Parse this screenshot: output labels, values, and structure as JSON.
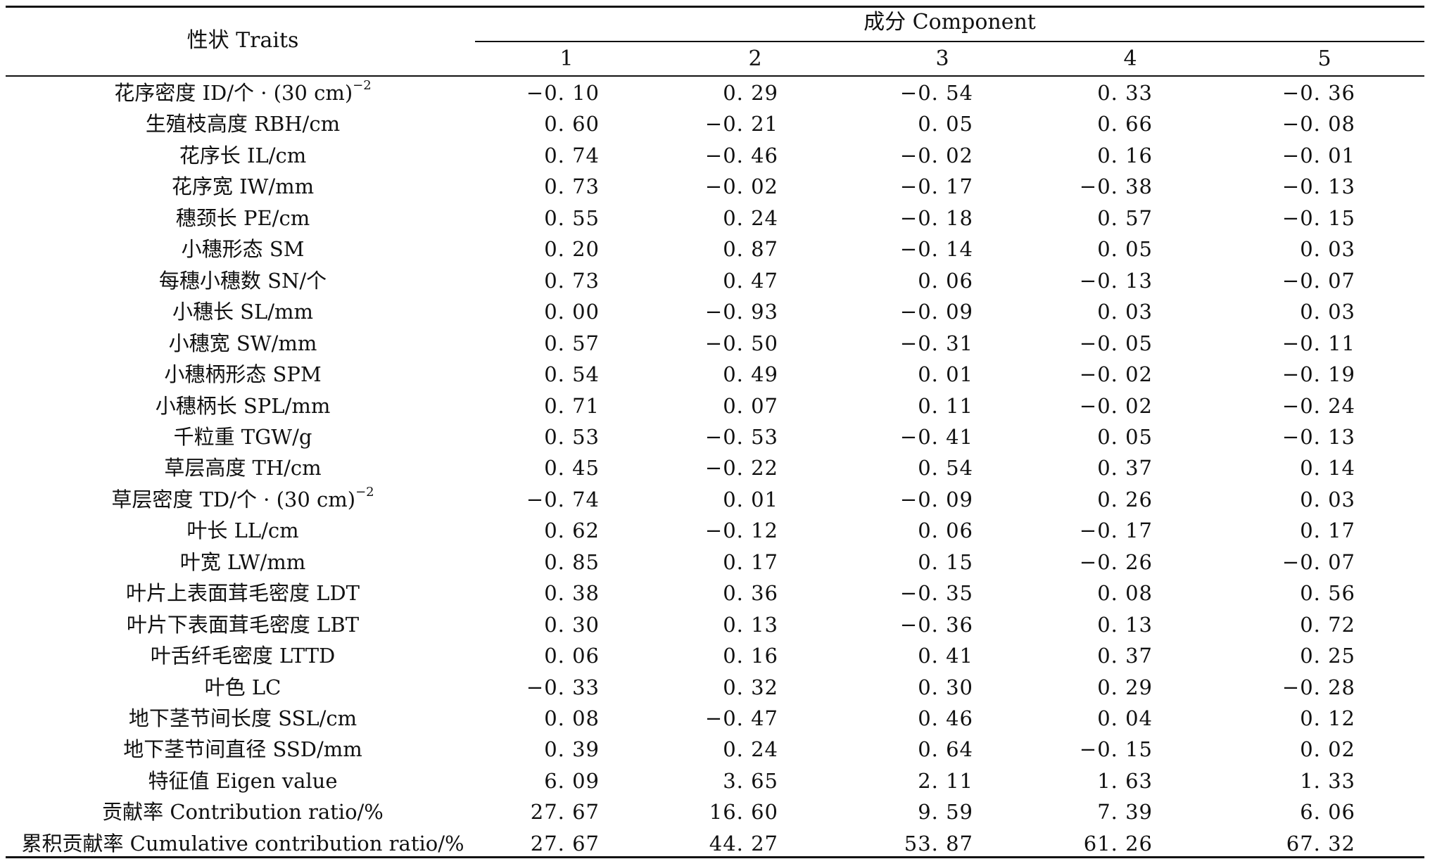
{
  "table": {
    "header": {
      "traits_label": "性状 Traits",
      "component_label": "成分 Component",
      "columns": [
        "1",
        "2",
        "3",
        "4",
        "5"
      ]
    },
    "rows": [
      {
        "trait": "花序密度 ID/个 · (30 cm)",
        "sup": "−2",
        "values": [
          "−0. 10",
          "0. 29",
          "−0. 54",
          "0. 33",
          "−0. 36"
        ]
      },
      {
        "trait": "生殖枝高度 RBH/cm",
        "sup": "",
        "values": [
          "0. 60",
          "−0. 21",
          "0. 05",
          "0. 66",
          "−0. 08"
        ]
      },
      {
        "trait": "花序长 IL/cm",
        "sup": "",
        "values": [
          "0. 74",
          "−0. 46",
          "−0. 02",
          "0. 16",
          "−0. 01"
        ]
      },
      {
        "trait": "花序宽 IW/mm",
        "sup": "",
        "values": [
          "0. 73",
          "−0. 02",
          "−0. 17",
          "−0. 38",
          "−0. 13"
        ]
      },
      {
        "trait": "穗颈长 PE/cm",
        "sup": "",
        "values": [
          "0. 55",
          "0. 24",
          "−0. 18",
          "0. 57",
          "−0. 15"
        ]
      },
      {
        "trait": "小穗形态 SM",
        "sup": "",
        "values": [
          "0. 20",
          "0. 87",
          "−0. 14",
          "0. 05",
          "0. 03"
        ]
      },
      {
        "trait": "每穗小穗数 SN/个",
        "sup": "",
        "values": [
          "0. 73",
          "0. 47",
          "0. 06",
          "−0. 13",
          "−0. 07"
        ]
      },
      {
        "trait": "小穗长 SL/mm",
        "sup": "",
        "values": [
          "0. 00",
          "−0. 93",
          "−0. 09",
          "0. 03",
          "0. 03"
        ]
      },
      {
        "trait": "小穗宽 SW/mm",
        "sup": "",
        "values": [
          "0. 57",
          "−0. 50",
          "−0. 31",
          "−0. 05",
          "−0. 11"
        ]
      },
      {
        "trait": "小穗柄形态 SPM",
        "sup": "",
        "values": [
          "0. 54",
          "0. 49",
          "0. 01",
          "−0. 02",
          "−0. 19"
        ]
      },
      {
        "trait": "小穗柄长 SPL/mm",
        "sup": "",
        "values": [
          "0. 71",
          "0. 07",
          "0. 11",
          "−0. 02",
          "−0. 24"
        ]
      },
      {
        "trait": "千粒重 TGW/g",
        "sup": "",
        "values": [
          "0. 53",
          "−0. 53",
          "−0. 41",
          "0. 05",
          "−0. 13"
        ]
      },
      {
        "trait": "草层高度 TH/cm",
        "sup": "",
        "values": [
          "0. 45",
          "−0. 22",
          "0. 54",
          "0. 37",
          "0. 14"
        ]
      },
      {
        "trait": "草层密度 TD/个 · (30 cm)",
        "sup": "−2",
        "values": [
          "−0. 74",
          "0. 01",
          "−0. 09",
          "0. 26",
          "0. 03"
        ]
      },
      {
        "trait": "叶长 LL/cm",
        "sup": "",
        "values": [
          "0. 62",
          "−0. 12",
          "0. 06",
          "−0. 17",
          "0. 17"
        ]
      },
      {
        "trait": "叶宽 LW/mm",
        "sup": "",
        "values": [
          "0. 85",
          "0. 17",
          "0. 15",
          "−0. 26",
          "−0. 07"
        ]
      },
      {
        "trait": "叶片上表面茸毛密度 LDT",
        "sup": "",
        "values": [
          "0. 38",
          "0. 36",
          "−0. 35",
          "0. 08",
          "0. 56"
        ]
      },
      {
        "trait": "叶片下表面茸毛密度 LBT",
        "sup": "",
        "values": [
          "0. 30",
          "0. 13",
          "−0. 36",
          "0. 13",
          "0. 72"
        ]
      },
      {
        "trait": "叶舌纤毛密度 LTTD",
        "sup": "",
        "values": [
          "0. 06",
          "0. 16",
          "0. 41",
          "0. 37",
          "0. 25"
        ]
      },
      {
        "trait": "叶色 LC",
        "sup": "",
        "values": [
          "−0. 33",
          "0. 32",
          "0. 30",
          "0. 29",
          "−0. 28"
        ]
      },
      {
        "trait": "地下茎节间长度 SSL/cm",
        "sup": "",
        "values": [
          "0. 08",
          "−0. 47",
          "0. 46",
          "0. 04",
          "0. 12"
        ]
      },
      {
        "trait": "地下茎节间直径 SSD/mm",
        "sup": "",
        "values": [
          "0. 39",
          "0. 24",
          "0. 64",
          "−0. 15",
          "0. 02"
        ]
      },
      {
        "trait": "特征值 Eigen value",
        "sup": "",
        "values": [
          "6. 09",
          "3. 65",
          "2. 11",
          "1. 63",
          "1. 33"
        ]
      },
      {
        "trait": "贡献率 Contribution ratio/%",
        "sup": "",
        "values": [
          "27. 67",
          "16. 60",
          "9. 59",
          "7. 39",
          "6. 06"
        ]
      },
      {
        "trait": "累积贡献率 Cumulative contribution ratio/%",
        "sup": "",
        "values": [
          "27. 67",
          "44. 27",
          "53. 87",
          "61. 26",
          "67. 32"
        ]
      }
    ]
  }
}
